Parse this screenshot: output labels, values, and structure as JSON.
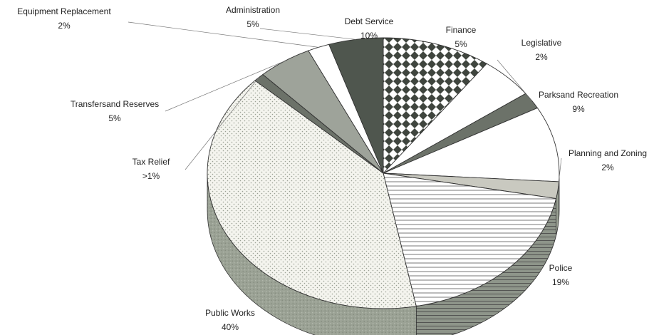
{
  "chart_data": {
    "type": "pie",
    "style": "3d-exploded-none",
    "title": "",
    "slices": [
      {
        "label": "Debt Service",
        "value_label": "10%",
        "value": 10,
        "fill": "checker"
      },
      {
        "label": "Finance",
        "value_label": "5%",
        "value": 5,
        "fill": "white"
      },
      {
        "label": "Legislative",
        "value_label": "2%",
        "value": 2,
        "fill": "grey-dark"
      },
      {
        "label": "Parksand Recreation",
        "value_label": "9%",
        "value": 9,
        "fill": "white"
      },
      {
        "label": "Planning and Zoning",
        "value_label": "2%",
        "value": 2,
        "fill": "grey-light"
      },
      {
        "label": "Police",
        "value_label": "19%",
        "value": 19,
        "fill": "hlines"
      },
      {
        "label": "Public Works",
        "value_label": "40%",
        "value": 40,
        "fill": "dots"
      },
      {
        "label": "Tax Relief",
        "value_label": ">1%",
        "value": 1,
        "fill": "grey-dark"
      },
      {
        "label": "Transfersand Reserves",
        "value_label": "5%",
        "value": 5,
        "fill": "grey-mid"
      },
      {
        "label": "Equipment Replacement",
        "value_label": "2%",
        "value": 2,
        "fill": "white"
      },
      {
        "label": "Administration",
        "value_label": "5%",
        "value": 5,
        "fill": "grey-darker"
      }
    ],
    "colors": {
      "grey-light": "#c9c9c0",
      "grey-mid": "#9ea39a",
      "grey-dark": "#6c7269",
      "grey-darker": "#4f564e",
      "outline": "#333333",
      "side": "#9ba295"
    }
  }
}
